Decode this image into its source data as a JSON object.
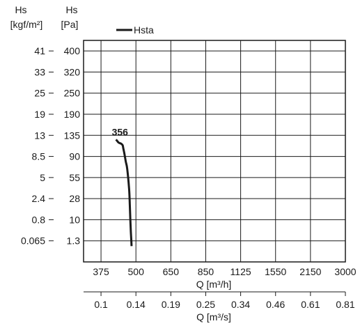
{
  "chart_data": {
    "type": "line",
    "left_axis_outer": {
      "title": "Hs",
      "unit": "[kgf/m²]",
      "ticks": [
        "41",
        "33",
        "25",
        "19",
        "13",
        "8.5",
        "5",
        "2.4",
        "0.8",
        "0.065"
      ]
    },
    "left_axis_inner": {
      "title": "Hs",
      "unit": "[Pa]",
      "ticks": [
        "400",
        "320",
        "250",
        "190",
        "135",
        "90",
        "55",
        "28",
        "10",
        "1.3"
      ]
    },
    "x_axis_primary": {
      "label": "Q [m³/h]",
      "ticks": [
        "375",
        "500",
        "650",
        "850",
        "1125",
        "1550",
        "2150",
        "3000"
      ]
    },
    "x_axis_secondary": {
      "label": "Q [m³/s]",
      "ticks": [
        "0.1",
        "0.14",
        "0.19",
        "0.25",
        "0.34",
        "0.46",
        "0.61",
        "0.81"
      ]
    },
    "legend": {
      "label": "Hsta",
      "placement": "top-left"
    },
    "grid": true,
    "series": [
      {
        "name": "356",
        "color": "#1a1a1a",
        "points": [
          [
            0.43,
            4.2
          ],
          [
            0.48,
            4.3
          ],
          [
            0.51,
            4.35
          ],
          [
            0.58,
            4.4
          ],
          [
            0.62,
            4.47
          ],
          [
            0.64,
            4.63
          ],
          [
            0.67,
            4.87
          ],
          [
            0.71,
            5.25
          ],
          [
            0.75,
            5.58
          ],
          [
            0.805,
            6.55
          ],
          [
            0.825,
            7.3
          ],
          [
            0.84,
            8.0
          ],
          [
            0.855,
            8.6
          ],
          [
            0.87,
            9.05
          ],
          [
            0.875,
            9.25
          ]
        ]
      }
    ]
  }
}
